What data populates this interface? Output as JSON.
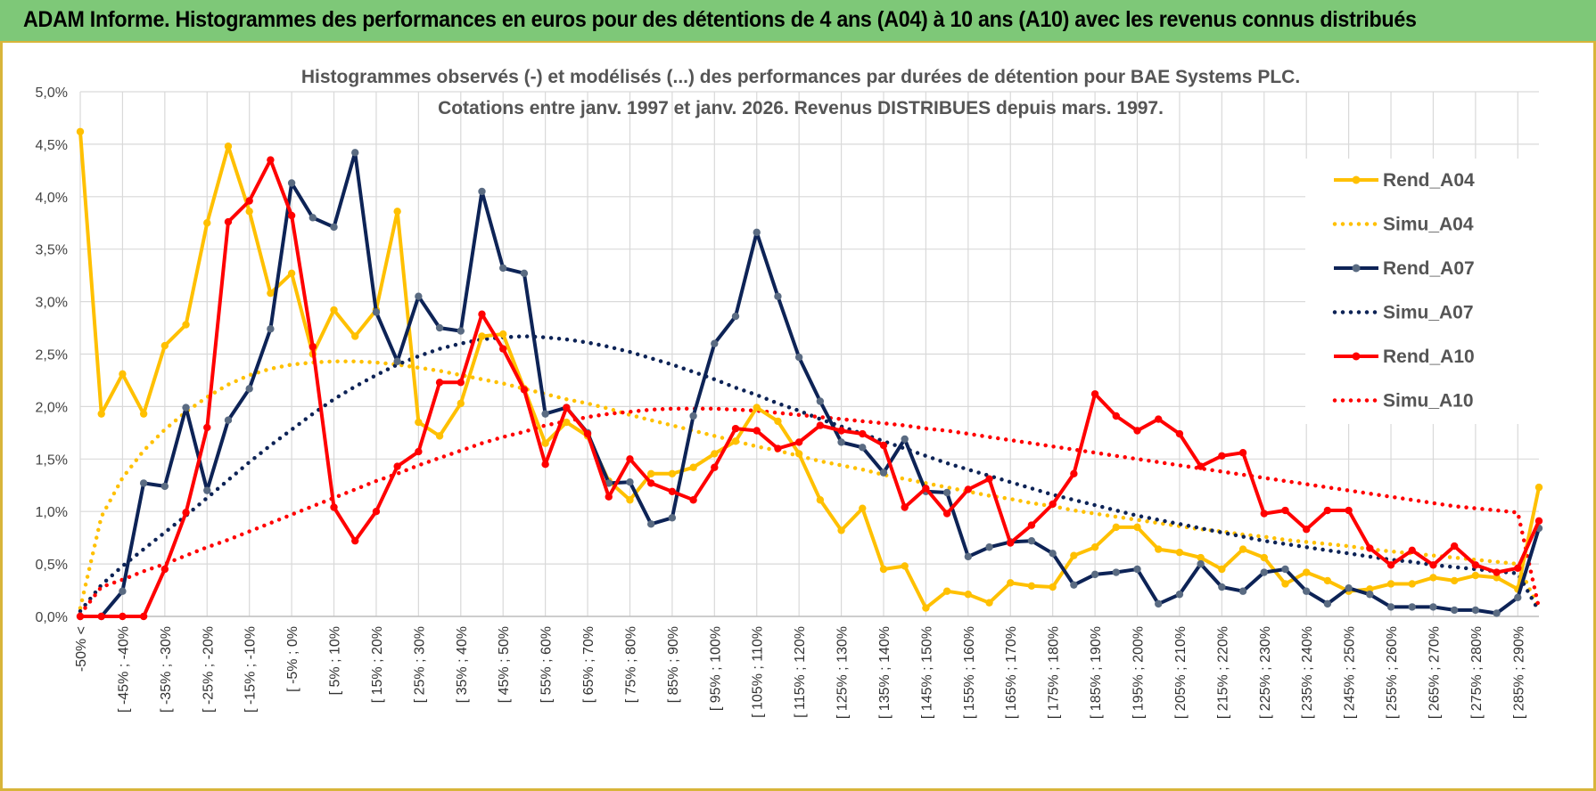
{
  "banner": {
    "title": "ADAM Informe. Histogrammes des performances en euros pour des détentions de 4 ans (A04) à 10 ans (A10) avec les revenus connus distribués"
  },
  "chart_data": {
    "type": "line",
    "title": "Histogrammes observés (-) et modélisés (...) des performances par durées de détention pour BAE Systems PLC.",
    "subtitle": "Cotations entre janv. 1997 et janv. 2026. Revenus DISTRIBUES depuis mars. 1997.",
    "xlabel": "",
    "ylabel": "",
    "ylim": [
      0,
      5
    ],
    "yticks": [
      "0,0%",
      "0,5%",
      "1,0%",
      "1,5%",
      "2,0%",
      "2,5%",
      "3,0%",
      "3,5%",
      "4,0%",
      "4,5%",
      "5,0%"
    ],
    "x_tick_labels": [
      "-50% <",
      "[ -45% ; -40%",
      "[ -35% ; -30%",
      "[ -25% ; -20%",
      "[ -15% ; -10%",
      "[ -5% ; 0%",
      "[ 5% ; 10%",
      "[ 15% ; 20%",
      "[ 25% ; 30%",
      "[ 35% ; 40%",
      "[ 45% ; 50%",
      "[ 55% ; 60%",
      "[ 65% ; 70%",
      "[ 75% ; 80%",
      "[ 85% ; 90%",
      "[ 95% ; 100%",
      "[ 105% ; 110%",
      "[ 115% ; 120%",
      "[ 125% ; 130%",
      "[ 135% ; 140%",
      "[ 145% ; 150%",
      "[ 155% ; 160%",
      "[ 165% ; 170%",
      "[ 175% ; 180%",
      "[ 185% ; 190%",
      "[ 195% ; 200%",
      "[ 205% ; 210%",
      "[ 215% ; 220%",
      "[ 225% ; 230%",
      "[ 235% ; 240%",
      "[ 245% ; 250%",
      "[ 255% ; 260%",
      "[ 265% ; 270%",
      "[ 275% ; 280%",
      "[ 285% ; 290%"
    ],
    "grid": true,
    "legend_position": "right",
    "series": [
      {
        "name": "Rend_A04",
        "style": "solid",
        "color": "#FFC000",
        "values": [
          4.62,
          1.93,
          2.31,
          1.93,
          2.58,
          2.78,
          3.75,
          4.48,
          3.86,
          3.08,
          3.27,
          2.5,
          2.92,
          2.67,
          2.92,
          3.86,
          1.85,
          1.72,
          2.03,
          2.67,
          2.69,
          2.17,
          1.65,
          1.85,
          1.72,
          1.29,
          1.11,
          1.36,
          1.36,
          1.42,
          1.55,
          1.67,
          1.99,
          1.86,
          1.55,
          1.11,
          0.82,
          1.03,
          0.45,
          0.48,
          0.08,
          0.24,
          0.21,
          0.13,
          0.32,
          0.29,
          0.28,
          0.58,
          0.66,
          0.85,
          0.85,
          0.64,
          0.61,
          0.56,
          0.45,
          0.64,
          0.56,
          0.31,
          0.42,
          0.34,
          0.24,
          0.26,
          0.31,
          0.31,
          0.37,
          0.34,
          0.39,
          0.37,
          0.26,
          1.23
        ]
      },
      {
        "name": "Simu_A04",
        "style": "dotted",
        "color": "#FFC000",
        "values": [
          0.08,
          0.95,
          1.32,
          1.58,
          1.78,
          1.95,
          2.09,
          2.21,
          2.3,
          2.36,
          2.4,
          2.42,
          2.43,
          2.43,
          2.42,
          2.4,
          2.37,
          2.34,
          2.3,
          2.26,
          2.22,
          2.17,
          2.12,
          2.07,
          2.03,
          1.98,
          1.92,
          1.87,
          1.82,
          1.77,
          1.72,
          1.67,
          1.62,
          1.58,
          1.53,
          1.48,
          1.44,
          1.4,
          1.35,
          1.31,
          1.27,
          1.23,
          1.19,
          1.15,
          1.12,
          1.08,
          1.05,
          1.01,
          0.98,
          0.95,
          0.92,
          0.89,
          0.86,
          0.83,
          0.81,
          0.78,
          0.76,
          0.73,
          0.71,
          0.69,
          0.67,
          0.64,
          0.62,
          0.6,
          0.58,
          0.56,
          0.54,
          0.52,
          0.5,
          0.07
        ]
      },
      {
        "name": "Rend_A07",
        "style": "solid",
        "color": "#0D2356",
        "values": [
          0.0,
          0.0,
          0.24,
          1.27,
          1.24,
          1.99,
          1.2,
          1.87,
          2.17,
          2.74,
          4.13,
          3.8,
          3.71,
          4.42,
          2.9,
          2.43,
          3.05,
          2.75,
          2.72,
          4.05,
          3.32,
          3.27,
          1.93,
          1.99,
          1.75,
          1.27,
          1.28,
          0.88,
          0.94,
          1.91,
          2.6,
          2.86,
          3.66,
          3.05,
          2.47,
          2.05,
          1.66,
          1.61,
          1.37,
          1.69,
          1.19,
          1.18,
          0.57,
          0.66,
          0.71,
          0.72,
          0.6,
          0.3,
          0.4,
          0.42,
          0.45,
          0.12,
          0.21,
          0.5,
          0.28,
          0.24,
          0.42,
          0.45,
          0.24,
          0.12,
          0.27,
          0.21,
          0.09,
          0.09,
          0.09,
          0.06,
          0.06,
          0.03,
          0.18,
          0.84
        ]
      },
      {
        "name": "Simu_A07",
        "style": "dotted",
        "color": "#0D2356",
        "values": [
          0.05,
          0.3,
          0.48,
          0.64,
          0.8,
          0.96,
          1.13,
          1.3,
          1.47,
          1.63,
          1.78,
          1.93,
          2.07,
          2.19,
          2.3,
          2.4,
          2.48,
          2.55,
          2.6,
          2.64,
          2.66,
          2.67,
          2.66,
          2.64,
          2.61,
          2.57,
          2.52,
          2.46,
          2.4,
          2.33,
          2.26,
          2.18,
          2.11,
          2.03,
          1.96,
          1.88,
          1.81,
          1.74,
          1.67,
          1.6,
          1.53,
          1.46,
          1.4,
          1.34,
          1.28,
          1.22,
          1.16,
          1.11,
          1.06,
          1.01,
          0.96,
          0.92,
          0.88,
          0.84,
          0.8,
          0.76,
          0.72,
          0.69,
          0.66,
          0.63,
          0.6,
          0.57,
          0.54,
          0.52,
          0.49,
          0.47,
          0.45,
          0.43,
          0.41,
          0.05
        ]
      },
      {
        "name": "Rend_A10",
        "style": "solid",
        "color": "#FF0000",
        "values": [
          0.0,
          0.0,
          0.0,
          0.0,
          0.45,
          0.99,
          1.8,
          3.76,
          3.96,
          4.35,
          3.82,
          2.57,
          1.04,
          0.72,
          1.0,
          1.43,
          1.57,
          2.23,
          2.23,
          2.88,
          2.55,
          2.16,
          1.45,
          1.99,
          1.74,
          1.14,
          1.5,
          1.27,
          1.19,
          1.11,
          1.42,
          1.79,
          1.77,
          1.6,
          1.66,
          1.82,
          1.77,
          1.74,
          1.63,
          1.04,
          1.22,
          0.98,
          1.21,
          1.31,
          0.7,
          0.87,
          1.07,
          1.36,
          2.12,
          1.91,
          1.77,
          1.88,
          1.74,
          1.43,
          1.53,
          1.56,
          0.98,
          1.01,
          0.83,
          1.01,
          1.01,
          0.65,
          0.49,
          0.63,
          0.49,
          0.67,
          0.49,
          0.42,
          0.46,
          0.91
        ]
      },
      {
        "name": "Simu_A10",
        "style": "dotted",
        "color": "#FF0000",
        "values": [
          0.02,
          0.28,
          0.35,
          0.43,
          0.5,
          0.58,
          0.66,
          0.73,
          0.81,
          0.89,
          0.97,
          1.05,
          1.13,
          1.21,
          1.29,
          1.36,
          1.44,
          1.51,
          1.58,
          1.65,
          1.71,
          1.76,
          1.82,
          1.86,
          1.9,
          1.93,
          1.95,
          1.97,
          1.98,
          1.98,
          1.98,
          1.97,
          1.96,
          1.94,
          1.92,
          1.9,
          1.88,
          1.86,
          1.84,
          1.82,
          1.79,
          1.77,
          1.74,
          1.71,
          1.68,
          1.65,
          1.62,
          1.59,
          1.56,
          1.53,
          1.5,
          1.47,
          1.44,
          1.41,
          1.38,
          1.35,
          1.32,
          1.29,
          1.26,
          1.23,
          1.2,
          1.17,
          1.14,
          1.11,
          1.08,
          1.05,
          1.03,
          1.01,
          0.99,
          0.08
        ]
      }
    ]
  }
}
